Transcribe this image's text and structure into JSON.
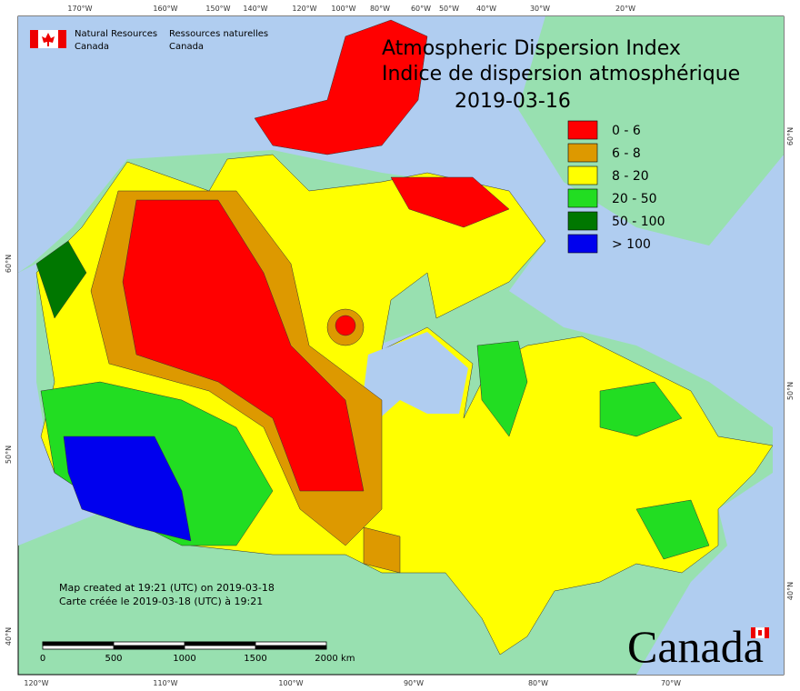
{
  "agency": {
    "en_line1": "Natural Resources",
    "en_line2": "Canada",
    "fr_line1": "Ressources naturelles",
    "fr_line2": "Canada"
  },
  "title": {
    "en": "Atmospheric Dispersion Index",
    "fr": "Indice de dispersion atmosphérique",
    "date": "2019-03-16"
  },
  "legend": [
    {
      "label": "0 - 6",
      "color": "#ff0000"
    },
    {
      "label": "6 - 8",
      "color": "#dd9900"
    },
    {
      "label": "8 - 20",
      "color": "#ffff00"
    },
    {
      "label": "20 - 50",
      "color": "#22dd22"
    },
    {
      "label": "50 - 100",
      "color": "#007700"
    },
    {
      "label": "> 100",
      "color": "#0000ee"
    }
  ],
  "top_labels": [
    "170°W",
    "160°W",
    "150°W",
    "140°W",
    "120°W",
    "100°W",
    "80°W",
    "60°W",
    "50°W",
    "40°W",
    "30°W",
    "20°W"
  ],
  "bottom_labels": [
    "120°W",
    "110°W",
    "100°W",
    "90°W",
    "80°W",
    "70°W"
  ],
  "left_labels": [
    "60°N",
    "50°N",
    "40°N"
  ],
  "right_labels": [
    "60°N",
    "50°N",
    "40°N"
  ],
  "credit": [
    "Map created at 19:21 (UTC) on 2019-03-18",
    "Carte créée le 2019-03-18 (UTC) à 19:21"
  ],
  "scale": {
    "labels": [
      "0",
      "500",
      "1000",
      "1500",
      "2000"
    ],
    "unit": "km"
  },
  "wordmark": "Canada"
}
